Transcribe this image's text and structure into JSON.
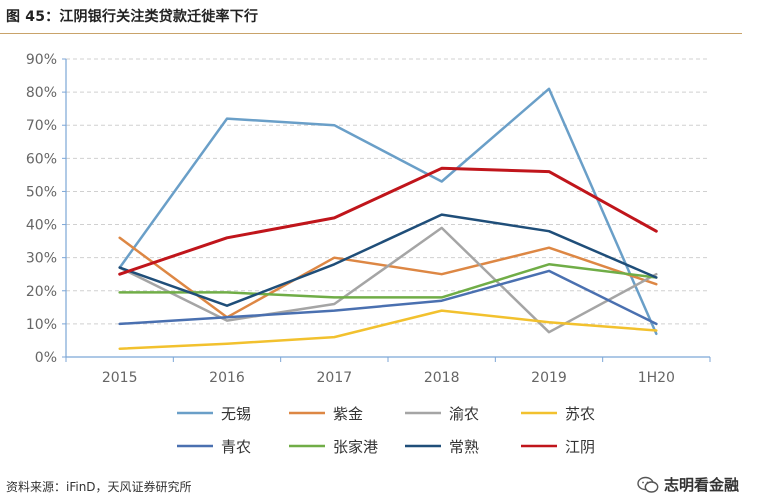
{
  "figure": {
    "title": "图 45：江阴银行关注类贷款迁徙率下行",
    "source": "资料来源：iFinD，天风证券研究所",
    "watermark": "志明看金融"
  },
  "chart_data": {
    "type": "line",
    "x": [
      "2015",
      "2016",
      "2017",
      "2018",
      "2019",
      "1H20"
    ],
    "ylim": [
      0,
      90
    ],
    "yticks": [
      "0%",
      "10%",
      "20%",
      "30%",
      "40%",
      "50%",
      "60%",
      "70%",
      "80%",
      "90%"
    ],
    "grid": true,
    "legend_position": "bottom",
    "series": [
      {
        "name": "无锡",
        "color": "#6a9fc8",
        "values": [
          27,
          72,
          70,
          53,
          81,
          7
        ]
      },
      {
        "name": "紫金",
        "color": "#dd8744",
        "values": [
          36,
          12,
          30,
          25,
          33,
          22
        ]
      },
      {
        "name": "渝农",
        "color": "#a5a5a5",
        "values": [
          27,
          11,
          16,
          39,
          7.5,
          25
        ]
      },
      {
        "name": "苏农",
        "color": "#f2c12e",
        "values": [
          2.5,
          4,
          6,
          14,
          10.5,
          8
        ]
      },
      {
        "name": "青农",
        "color": "#4a70b0",
        "values": [
          10,
          12,
          14,
          17,
          26,
          10
        ]
      },
      {
        "name": "张家港",
        "color": "#70ad47",
        "values": [
          19.5,
          19.5,
          18,
          18,
          28,
          24
        ]
      },
      {
        "name": "常熟",
        "color": "#1f4e79",
        "values": [
          27,
          15.5,
          28,
          43,
          38,
          24
        ]
      },
      {
        "name": "江阴",
        "color": "#c0151b",
        "values": [
          25,
          36,
          42,
          57,
          56,
          38
        ]
      }
    ]
  }
}
